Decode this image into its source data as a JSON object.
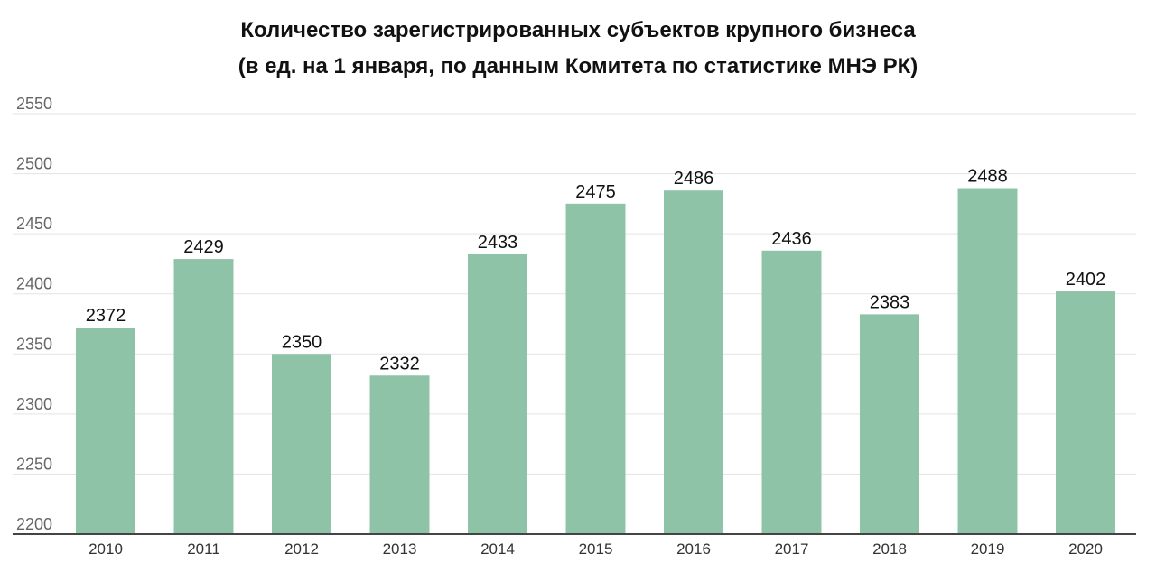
{
  "chart_data": {
    "type": "bar",
    "title": "Количество зарегистрированных субъектов крупного бизнеса",
    "subtitle": "(в ед. на 1 января, по данным Комитета по статистике МНЭ РК)",
    "xlabel": "",
    "ylabel": "",
    "categories": [
      "2010",
      "2011",
      "2012",
      "2013",
      "2014",
      "2015",
      "2016",
      "2017",
      "2018",
      "2019",
      "2020"
    ],
    "values": [
      2372,
      2429,
      2350,
      2332,
      2433,
      2475,
      2486,
      2436,
      2383,
      2488,
      2402
    ],
    "ylim": [
      2200,
      2550
    ],
    "yticks": [
      "2200",
      "2250",
      "2300",
      "2350",
      "2400",
      "2450",
      "2500",
      "2550"
    ],
    "grid": true,
    "bar_color": "#8fc3a7",
    "grid_color": "#e3e3e3",
    "axis_color": "#444444"
  }
}
